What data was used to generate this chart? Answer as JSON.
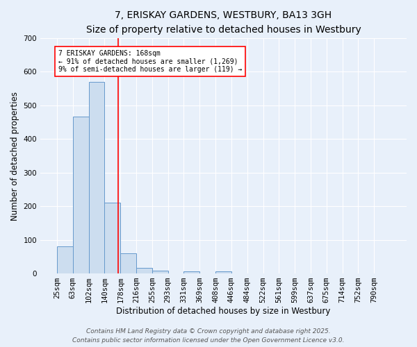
{
  "title": "7, ERISKAY GARDENS, WESTBURY, BA13 3GH",
  "subtitle": "Size of property relative to detached houses in Westbury",
  "xlabel": "Distribution of detached houses by size in Westbury",
  "ylabel": "Number of detached properties",
  "bar_color": "#ccddef",
  "bar_edge_color": "#6699cc",
  "bin_labels": [
    "25sqm",
    "63sqm",
    "102sqm",
    "140sqm",
    "178sqm",
    "216sqm",
    "255sqm",
    "293sqm",
    "331sqm",
    "369sqm",
    "408sqm",
    "446sqm",
    "484sqm",
    "522sqm",
    "561sqm",
    "599sqm",
    "637sqm",
    "675sqm",
    "714sqm",
    "752sqm",
    "790sqm"
  ],
  "bar_heights": [
    80,
    467,
    570,
    210,
    60,
    17,
    9,
    0,
    7,
    0,
    6,
    0,
    0,
    0,
    0,
    0,
    0,
    0,
    0,
    0,
    0
  ],
  "ylim": [
    0,
    700
  ],
  "yticks": [
    0,
    100,
    200,
    300,
    400,
    500,
    600,
    700
  ],
  "red_line_x": 3.84,
  "annotation_text": "7 ERISKAY GARDENS: 168sqm\n← 91% of detached houses are smaller (1,269)\n9% of semi-detached houses are larger (119) →",
  "footer_line1": "Contains HM Land Registry data © Crown copyright and database right 2025.",
  "footer_line2": "Contains public sector information licensed under the Open Government Licence v3.0.",
  "bg_color": "#e8f0fa",
  "plot_bg_color": "#e8f0fa",
  "grid_color": "#ffffff",
  "title_fontsize": 10,
  "subtitle_fontsize": 9,
  "label_fontsize": 8.5,
  "tick_fontsize": 7.5,
  "footer_fontsize": 6.5
}
